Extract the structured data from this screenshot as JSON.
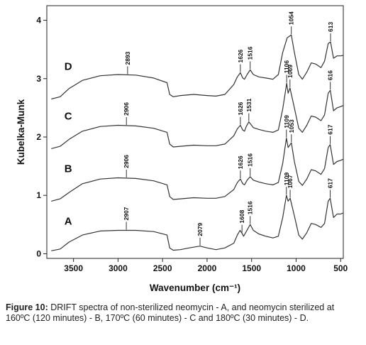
{
  "chart_data": {
    "type": "line",
    "title": "",
    "xlabel": "Wavenumber (cm⁻¹)",
    "ylabel": "Kubelka-Munk",
    "xlim": [
      3800,
      470
    ],
    "ylim": [
      -0.08,
      4.25
    ],
    "x_reversed": true,
    "xticks": [
      3500,
      3000,
      2500,
      2000,
      1500,
      1000,
      500
    ],
    "yticks": [
      0,
      1,
      2,
      3,
      4
    ],
    "grid": false,
    "series": [
      {
        "name": "A",
        "offset": 0.0,
        "points": [
          [
            3750,
            0.05
          ],
          [
            3650,
            0.08
          ],
          [
            3550,
            0.2
          ],
          [
            3400,
            0.32
          ],
          [
            3200,
            0.39
          ],
          [
            3000,
            0.4
          ],
          [
            2800,
            0.4
          ],
          [
            2600,
            0.38
          ],
          [
            2450,
            0.32
          ],
          [
            2420,
            0.1
          ],
          [
            2380,
            0.06
          ],
          [
            2300,
            0.07
          ],
          [
            2200,
            0.1
          ],
          [
            2079,
            0.13
          ],
          [
            2000,
            0.1
          ],
          [
            1900,
            0.07
          ],
          [
            1800,
            0.1
          ],
          [
            1700,
            0.18
          ],
          [
            1660,
            0.32
          ],
          [
            1630,
            0.4
          ],
          [
            1608,
            0.35
          ],
          [
            1590,
            0.3
          ],
          [
            1560,
            0.38
          ],
          [
            1516,
            0.5
          ],
          [
            1480,
            0.4
          ],
          [
            1420,
            0.34
          ],
          [
            1340,
            0.3
          ],
          [
            1260,
            0.27
          ],
          [
            1200,
            0.3
          ],
          [
            1150,
            0.62
          ],
          [
            1109,
            1.0
          ],
          [
            1090,
            0.9
          ],
          [
            1067,
            0.95
          ],
          [
            1020,
            0.65
          ],
          [
            970,
            0.32
          ],
          [
            930,
            0.25
          ],
          [
            880,
            0.36
          ],
          [
            830,
            0.52
          ],
          [
            780,
            0.5
          ],
          [
            720,
            0.45
          ],
          [
            680,
            0.52
          ],
          [
            640,
            0.9
          ],
          [
            617,
            0.95
          ],
          [
            580,
            0.62
          ],
          [
            540,
            0.68
          ],
          [
            500,
            0.68
          ],
          [
            470,
            0.7
          ]
        ],
        "peak_labels": [
          {
            "x": 2907,
            "text": "2907"
          },
          {
            "x": 2079,
            "text": "2079"
          },
          {
            "x": 1608,
            "text": "1608"
          },
          {
            "x": 1516,
            "text": "1516"
          },
          {
            "x": 1109,
            "text": "1109"
          },
          {
            "x": 1067,
            "text": "1067"
          },
          {
            "x": 617,
            "text": "617"
          }
        ]
      },
      {
        "name": "B",
        "offset": 0.9,
        "points": [
          [
            3750,
            0.0
          ],
          [
            3650,
            0.04
          ],
          [
            3550,
            0.15
          ],
          [
            3400,
            0.3
          ],
          [
            3200,
            0.38
          ],
          [
            3000,
            0.4
          ],
          [
            2800,
            0.39
          ],
          [
            2600,
            0.35
          ],
          [
            2450,
            0.28
          ],
          [
            2420,
            0.08
          ],
          [
            2380,
            0.03
          ],
          [
            2300,
            0.04
          ],
          [
            2150,
            0.06
          ],
          [
            2000,
            0.05
          ],
          [
            1900,
            0.05
          ],
          [
            1800,
            0.08
          ],
          [
            1700,
            0.2
          ],
          [
            1660,
            0.32
          ],
          [
            1626,
            0.38
          ],
          [
            1600,
            0.3
          ],
          [
            1580,
            0.28
          ],
          [
            1550,
            0.36
          ],
          [
            1516,
            0.42
          ],
          [
            1480,
            0.36
          ],
          [
            1420,
            0.33
          ],
          [
            1340,
            0.3
          ],
          [
            1260,
            0.28
          ],
          [
            1200,
            0.32
          ],
          [
            1150,
            0.65
          ],
          [
            1109,
            1.08
          ],
          [
            1090,
            0.92
          ],
          [
            1053,
            1.0
          ],
          [
            1020,
            0.68
          ],
          [
            970,
            0.34
          ],
          [
            930,
            0.27
          ],
          [
            880,
            0.38
          ],
          [
            830,
            0.54
          ],
          [
            780,
            0.52
          ],
          [
            720,
            0.46
          ],
          [
            680,
            0.56
          ],
          [
            640,
            0.92
          ],
          [
            617,
            0.97
          ],
          [
            580,
            0.63
          ],
          [
            540,
            0.68
          ],
          [
            500,
            0.7
          ],
          [
            470,
            0.72
          ]
        ],
        "peak_labels": [
          {
            "x": 2906,
            "text": "2906"
          },
          {
            "x": 1626,
            "text": "1626"
          },
          {
            "x": 1516,
            "text": "1516"
          },
          {
            "x": 1109,
            "text": "1109"
          },
          {
            "x": 1053,
            "text": "1053"
          },
          {
            "x": 617,
            "text": "617"
          }
        ]
      },
      {
        "name": "C",
        "offset": 1.8,
        "points": [
          [
            3750,
            0.0
          ],
          [
            3650,
            0.04
          ],
          [
            3550,
            0.16
          ],
          [
            3400,
            0.3
          ],
          [
            3200,
            0.38
          ],
          [
            3000,
            0.4
          ],
          [
            2800,
            0.39
          ],
          [
            2600,
            0.35
          ],
          [
            2450,
            0.28
          ],
          [
            2420,
            0.08
          ],
          [
            2380,
            0.03
          ],
          [
            2300,
            0.04
          ],
          [
            2150,
            0.06
          ],
          [
            2000,
            0.05
          ],
          [
            1900,
            0.05
          ],
          [
            1800,
            0.08
          ],
          [
            1700,
            0.22
          ],
          [
            1660,
            0.34
          ],
          [
            1626,
            0.4
          ],
          [
            1600,
            0.32
          ],
          [
            1580,
            0.3
          ],
          [
            1560,
            0.38
          ],
          [
            1531,
            0.46
          ],
          [
            1480,
            0.36
          ],
          [
            1420,
            0.33
          ],
          [
            1340,
            0.3
          ],
          [
            1260,
            0.28
          ],
          [
            1200,
            0.32
          ],
          [
            1150,
            0.68
          ],
          [
            1106,
            1.12
          ],
          [
            1090,
            0.95
          ],
          [
            1069,
            1.04
          ],
          [
            1020,
            0.7
          ],
          [
            970,
            0.35
          ],
          [
            930,
            0.28
          ],
          [
            880,
            0.4
          ],
          [
            830,
            0.56
          ],
          [
            780,
            0.54
          ],
          [
            720,
            0.48
          ],
          [
            680,
            0.58
          ],
          [
            640,
            0.95
          ],
          [
            616,
            1.0
          ],
          [
            580,
            0.65
          ],
          [
            540,
            0.7
          ],
          [
            500,
            0.72
          ],
          [
            470,
            0.74
          ]
        ],
        "peak_labels": [
          {
            "x": 2906,
            "text": "2906"
          },
          {
            "x": 1626,
            "text": "1626"
          },
          {
            "x": 1531,
            "text": "1531"
          },
          {
            "x": 1106,
            "text": "1106"
          },
          {
            "x": 1069,
            "text": "1069"
          },
          {
            "x": 616,
            "text": "616"
          }
        ]
      },
      {
        "name": "D",
        "offset": 2.65,
        "points": [
          [
            3750,
            0.0
          ],
          [
            3650,
            0.04
          ],
          [
            3550,
            0.18
          ],
          [
            3400,
            0.32
          ],
          [
            3200,
            0.4
          ],
          [
            3000,
            0.42
          ],
          [
            2800,
            0.41
          ],
          [
            2600,
            0.36
          ],
          [
            2450,
            0.28
          ],
          [
            2420,
            0.08
          ],
          [
            2380,
            0.04
          ],
          [
            2300,
            0.06
          ],
          [
            2150,
            0.08
          ],
          [
            2000,
            0.06
          ],
          [
            1900,
            0.05
          ],
          [
            1800,
            0.08
          ],
          [
            1700,
            0.25
          ],
          [
            1660,
            0.38
          ],
          [
            1626,
            0.45
          ],
          [
            1600,
            0.36
          ],
          [
            1580,
            0.34
          ],
          [
            1550,
            0.42
          ],
          [
            1516,
            0.5
          ],
          [
            1480,
            0.42
          ],
          [
            1420,
            0.38
          ],
          [
            1340,
            0.36
          ],
          [
            1260,
            0.34
          ],
          [
            1200,
            0.42
          ],
          [
            1150,
            0.8
          ],
          [
            1100,
            1.05
          ],
          [
            1054,
            1.1
          ],
          [
            1020,
            0.8
          ],
          [
            970,
            0.42
          ],
          [
            930,
            0.34
          ],
          [
            880,
            0.46
          ],
          [
            830,
            0.62
          ],
          [
            780,
            0.6
          ],
          [
            720,
            0.54
          ],
          [
            680,
            0.65
          ],
          [
            640,
            0.95
          ],
          [
            613,
            0.98
          ],
          [
            580,
            0.7
          ],
          [
            540,
            0.74
          ],
          [
            500,
            0.74
          ],
          [
            470,
            0.75
          ]
        ],
        "peak_labels": [
          {
            "x": 2893,
            "text": "2893"
          },
          {
            "x": 1626,
            "text": "1626"
          },
          {
            "x": 1516,
            "text": "1516"
          },
          {
            "x": 1054,
            "text": "1054"
          },
          {
            "x": 613,
            "text": "613"
          }
        ]
      }
    ]
  },
  "caption": {
    "label": "Figure 10:",
    "text": " DRIFT spectra of non-sterilized neomycin - A, and neomycin sterilized at 160ºC (120 minutes) - B, 170ºC (60 minutes) - C and 180ºC (30 minutes) - D."
  }
}
